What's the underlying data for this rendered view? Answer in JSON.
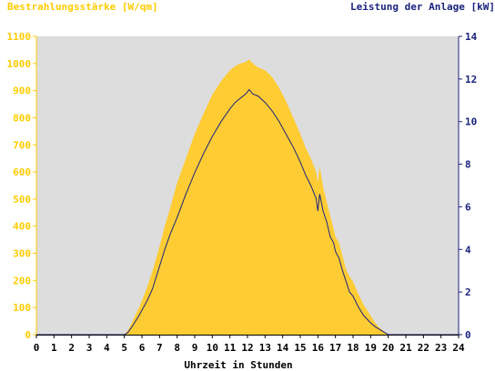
{
  "chart_data": {
    "type": "area",
    "title_left": "Bestrahlungsstärke [W/qm]",
    "title_right": "Leistung der Anlage [kW]",
    "xlabel": "Uhrzeit in Stunden",
    "xlim": [
      0,
      24
    ],
    "x_ticks": [
      "0",
      "1",
      "2",
      "3",
      "4",
      "5",
      "6",
      "7",
      "8",
      "9",
      "10",
      "11",
      "12",
      "13",
      "14",
      "15",
      "16",
      "17",
      "18",
      "19",
      "20",
      "21",
      "22",
      "23",
      "24"
    ],
    "y_left_lim": [
      0,
      1100
    ],
    "y_left_ticks": [
      "0",
      "100",
      "200",
      "300",
      "400",
      "500",
      "600",
      "700",
      "800",
      "900",
      "1000",
      "1100"
    ],
    "y_right_lim": [
      0,
      14
    ],
    "y_right_ticks": [
      "0",
      "2",
      "4",
      "6",
      "8",
      "10",
      "12",
      "14"
    ],
    "grid": false,
    "colors": {
      "irradiance_fill": "#ffcc33",
      "irradiance_axis": "#ffcc00",
      "power_line": "#1a237e",
      "power_axis": "#1a237e",
      "plot_background": "#dddddd"
    },
    "series": [
      {
        "axis": "left",
        "kind": "area",
        "x": [
          0,
          5,
          5.2,
          5.5,
          5.8,
          6,
          6.3,
          6.6,
          7,
          7.3,
          7.6,
          8,
          8.5,
          9,
          9.5,
          10,
          10.5,
          11,
          11.3,
          11.6,
          11.9,
          12.1,
          12.3,
          12.6,
          13,
          13.4,
          13.8,
          14.2,
          14.6,
          15,
          15.3,
          15.6,
          15.9,
          16,
          16.1,
          16.3,
          16.5,
          16.7,
          16.9,
          17,
          17.2,
          17.4,
          17.6,
          17.8,
          18,
          18.3,
          18.6,
          19,
          19.3,
          19.6,
          19.8,
          20,
          20.3,
          20.6,
          24
        ],
        "values": [
          0,
          0,
          15,
          55,
          95,
          125,
          175,
          235,
          325,
          400,
          465,
          560,
          650,
          740,
          815,
          885,
          935,
          975,
          990,
          1000,
          1005,
          1015,
          1000,
          985,
          975,
          950,
          910,
          860,
          800,
          740,
          690,
          650,
          600,
          560,
          620,
          545,
          490,
          440,
          390,
          360,
          340,
          290,
          240,
          215,
          195,
          150,
          110,
          70,
          40,
          20,
          10,
          0,
          0,
          0,
          0
        ]
      },
      {
        "axis": "right",
        "kind": "line",
        "x": [
          0,
          5,
          5.2,
          5.5,
          5.8,
          6,
          6.3,
          6.6,
          7,
          7.3,
          7.6,
          8,
          8.5,
          9,
          9.5,
          10,
          10.5,
          11,
          11.3,
          11.6,
          11.9,
          12.1,
          12.3,
          12.6,
          13,
          13.4,
          13.8,
          14.2,
          14.6,
          15,
          15.3,
          15.6,
          15.9,
          16,
          16.1,
          16.3,
          16.5,
          16.7,
          16.9,
          17,
          17.2,
          17.4,
          17.6,
          17.8,
          18,
          18.3,
          18.6,
          19,
          19.3,
          19.6,
          19.8,
          20,
          20.3,
          20.6,
          24
        ],
        "values": [
          0,
          0,
          0.1,
          0.45,
          0.85,
          1.15,
          1.6,
          2.15,
          3.2,
          4.0,
          4.7,
          5.5,
          6.6,
          7.6,
          8.5,
          9.3,
          10.0,
          10.6,
          10.9,
          11.1,
          11.3,
          11.5,
          11.3,
          11.2,
          10.9,
          10.5,
          10.0,
          9.4,
          8.8,
          8.1,
          7.5,
          7.0,
          6.4,
          5.8,
          6.6,
          5.8,
          5.3,
          4.6,
          4.3,
          3.9,
          3.6,
          3.0,
          2.5,
          2.0,
          1.8,
          1.3,
          0.9,
          0.55,
          0.35,
          0.2,
          0.1,
          0,
          0,
          0,
          0
        ]
      }
    ]
  }
}
